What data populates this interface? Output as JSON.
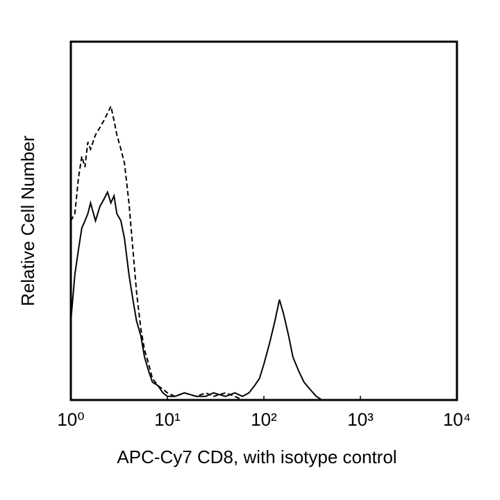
{
  "chart_data": {
    "type": "line",
    "x_label": "APC-Cy7 CD8, with isotype control",
    "y_label": "Relative Cell Number",
    "xscale": "log",
    "xlim": [
      1,
      10000
    ],
    "ylim": [
      0,
      100
    ],
    "xticks": [
      {
        "value": 1,
        "label": "10⁰"
      },
      {
        "value": 10,
        "label": "10¹"
      },
      {
        "value": 100,
        "label": "10²"
      },
      {
        "value": 1000,
        "label": "10³"
      },
      {
        "value": 10000,
        "label": "10⁴"
      }
    ],
    "x": [
      1,
      1.1,
      1.2,
      1.3,
      1.4,
      1.5,
      1.6,
      1.8,
      2,
      2.2,
      2.4,
      2.6,
      2.8,
      3,
      3.3,
      3.6,
      4,
      4.4,
      4.8,
      5.3,
      5.8,
      6.4,
      7,
      8,
      9,
      10,
      12,
      15,
      20,
      25,
      30,
      40,
      50,
      60,
      70,
      80,
      90,
      100,
      115,
      130,
      145,
      160,
      180,
      200,
      230,
      260,
      300,
      350,
      400,
      500,
      1000,
      3000,
      10000
    ],
    "series": [
      {
        "color": "#000000",
        "dash": false,
        "values": [
          22,
          35,
          42,
          48,
          50,
          52,
          55,
          50,
          54,
          56,
          58,
          55,
          57,
          52,
          50,
          45,
          35,
          28,
          22,
          18,
          12,
          8,
          5,
          4,
          2,
          1,
          1,
          2,
          1,
          1,
          2,
          1,
          2,
          1,
          2,
          4,
          6,
          10,
          16,
          22,
          28,
          24,
          18,
          12,
          8,
          5,
          3,
          1,
          0,
          0,
          0,
          0,
          0
        ]
      },
      {
        "color": "#000000",
        "dash": true,
        "values": [
          50,
          52,
          62,
          68,
          65,
          72,
          70,
          74,
          76,
          78,
          80,
          82,
          78,
          74,
          70,
          66,
          55,
          42,
          30,
          20,
          14,
          10,
          6,
          4,
          3,
          2,
          1,
          2,
          1,
          2,
          1,
          2,
          1,
          0,
          0,
          0,
          0,
          0,
          0,
          0,
          0,
          0,
          0,
          0,
          0,
          0,
          0,
          0,
          0,
          0,
          0,
          0,
          0
        ]
      }
    ]
  }
}
